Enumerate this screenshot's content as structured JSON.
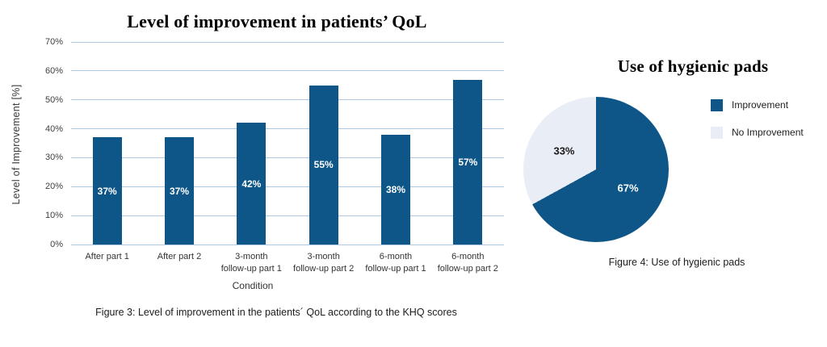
{
  "page": {
    "background": "#ffffff"
  },
  "chart_data": [
    {
      "type": "bar",
      "title": "Level of improvement in patients’ QoL",
      "ylabel": "Level of Improvement [%]",
      "xlabel": "Condition",
      "caption": "Figure 3: Level of improvement in the patients´ QoL according to the KHQ scores",
      "categories": [
        "After part 1",
        "After part 2",
        "3-month\nfollow-up part 1",
        "3-month\nfollow-up part 2",
        "6-month\nfollow-up part 1",
        "6-month\nfollow-up part 2"
      ],
      "values": [
        37,
        37,
        42,
        55,
        38,
        57
      ],
      "value_labels": [
        "37%",
        "37%",
        "42%",
        "55%",
        "38%",
        "57%"
      ],
      "ylim": [
        0,
        70
      ],
      "yticks_top_down": [
        "70%",
        "60%",
        "50%",
        "40%",
        "30%",
        "20%",
        "10%",
        "0%"
      ],
      "grid": "horizontal",
      "legend": "none",
      "bar_color": "#0e5588",
      "grid_color": "#b0c7e1",
      "bar_label_color": "#ffffff"
    },
    {
      "type": "pie",
      "title": "Use of hygienic pads",
      "caption": "Figure 4: Use of hygienic pads",
      "start_angle_deg_from_top": 0,
      "direction": "clockwise",
      "legend_position": "right",
      "slices": [
        {
          "label": "Improvement",
          "value": 67,
          "display": "67%",
          "color": "#0e5588",
          "label_color": "#ffffff"
        },
        {
          "label": "No Improvement",
          "value": 33,
          "display": "33%",
          "color": "#e9edf6",
          "label_color": "#1a1a1a"
        }
      ]
    }
  ]
}
